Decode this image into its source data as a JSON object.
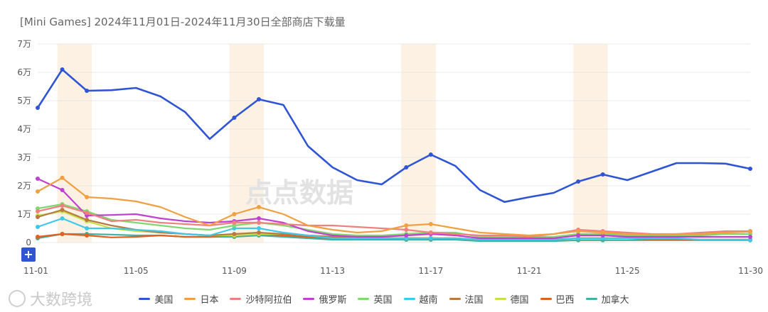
{
  "title": "[Mini Games] 2024年11月01日-2024年11月30日全部商店下载量",
  "watermark": "点点数据",
  "footer_logo": "大数跨境",
  "zoom_button": "+",
  "chart_data": {
    "type": "line",
    "title": "[Mini Games] 2024年11月01日-2024年11月30日全部商店下载量",
    "x": [
      "11-01",
      "11-02",
      "11-03",
      "11-04",
      "11-05",
      "11-06",
      "11-07",
      "11-08",
      "11-09",
      "11-10",
      "11-11",
      "11-12",
      "11-13",
      "11-14",
      "11-15",
      "11-16",
      "11-17",
      "11-18",
      "11-19",
      "11-20",
      "11-21",
      "11-22",
      "11-23",
      "11-24",
      "11-25",
      "11-26",
      "11-27",
      "11-28",
      "11-29",
      "11-30"
    ],
    "x_tick_labels": [
      "11-01",
      "11-05",
      "11-09",
      "11-13",
      "11-17",
      "11-21",
      "11-25",
      "11-30"
    ],
    "y_tick_labels": [
      "0",
      "1万",
      "2万",
      "3万",
      "4万",
      "5万",
      "6万",
      "7万"
    ],
    "ylim": [
      0,
      70000
    ],
    "weekend_bands": [
      [
        "11-02",
        "11-03"
      ],
      [
        "11-09",
        "11-10"
      ],
      [
        "11-16",
        "11-17"
      ],
      [
        "11-23",
        "11-24"
      ]
    ],
    "grid": true,
    "legend_position": "bottom",
    "series": [
      {
        "name": "美国",
        "color": "#2f55d4",
        "values": [
          47500,
          61000,
          53500,
          53700,
          54500,
          51500,
          46000,
          36500,
          44000,
          50500,
          48500,
          34000,
          26500,
          22000,
          20500,
          26500,
          31000,
          27000,
          18500,
          14300,
          16000,
          17500,
          21500,
          24000,
          22000,
          25000,
          28000,
          28000,
          27800,
          26000
        ]
      },
      {
        "name": "日本",
        "color": "#f0a040",
        "values": [
          18000,
          22800,
          16000,
          15500,
          14500,
          12500,
          9000,
          6000,
          10000,
          12500,
          10000,
          6000,
          4500,
          3500,
          4000,
          6000,
          6500,
          5000,
          3500,
          3000,
          2500,
          3000,
          4000,
          3500,
          3000,
          2800,
          3000,
          3000,
          3500,
          3800
        ]
      },
      {
        "name": "沙特阿拉伯",
        "color": "#f08080",
        "values": [
          11000,
          13000,
          10500,
          7500,
          8000,
          7000,
          6500,
          6000,
          7000,
          7000,
          6500,
          6000,
          6000,
          5500,
          5000,
          4500,
          3500,
          3000,
          2500,
          2500,
          2000,
          3000,
          4500,
          4000,
          3500,
          3000,
          3000,
          3500,
          4000,
          4000
        ]
      },
      {
        "name": "俄罗斯",
        "color": "#c040d0",
        "values": [
          22500,
          18500,
          9500,
          9700,
          10000,
          8500,
          7500,
          7000,
          7500,
          8500,
          7000,
          4000,
          2500,
          2000,
          2000,
          2500,
          3000,
          2500,
          1500,
          1500,
          1500,
          1500,
          2500,
          2500,
          2000,
          2000,
          2000,
          2000,
          2000,
          2000
        ]
      },
      {
        "name": "英国",
        "color": "#80d870",
        "values": [
          12000,
          13500,
          11000,
          8000,
          7000,
          6000,
          5000,
          4500,
          6000,
          7000,
          6000,
          4500,
          3000,
          2500,
          2500,
          3000,
          3500,
          3500,
          2000,
          2000,
          2000,
          2000,
          3000,
          3000,
          2500,
          2500,
          2500,
          2500,
          3000,
          3000
        ]
      },
      {
        "name": "越南",
        "color": "#40c8e8",
        "values": [
          5500,
          8500,
          5000,
          5000,
          4500,
          4000,
          3000,
          2500,
          5000,
          5000,
          3500,
          2500,
          1500,
          1500,
          1500,
          1500,
          1500,
          1500,
          1000,
          1000,
          1000,
          1000,
          1500,
          1500,
          1500,
          1500,
          1500,
          1000,
          1000,
          1000
        ]
      },
      {
        "name": "法国",
        "color": "#b87a40",
        "values": [
          9000,
          11500,
          8000,
          6000,
          4500,
          3500,
          3000,
          2500,
          3000,
          3500,
          3000,
          2500,
          2000,
          1500,
          1500,
          1500,
          1500,
          1500,
          1000,
          1000,
          1000,
          1000,
          1500,
          1500,
          1500,
          1000,
          1000,
          1000,
          1000,
          1000
        ]
      },
      {
        "name": "德国",
        "color": "#c8e048",
        "values": [
          9500,
          11000,
          7500,
          5000,
          4000,
          3500,
          3000,
          2500,
          2500,
          3000,
          3000,
          2500,
          2000,
          1500,
          1500,
          1500,
          1500,
          1500,
          1000,
          1000,
          1000,
          1000,
          1500,
          1500,
          1500,
          1000,
          1000,
          1000,
          1000,
          1000
        ]
      },
      {
        "name": "巴西",
        "color": "#e06020",
        "values": [
          2000,
          3000,
          2500,
          1800,
          2000,
          2500,
          2000,
          2000,
          2500,
          3000,
          2500,
          2000,
          1500,
          1500,
          1500,
          1500,
          1500,
          1500,
          1000,
          1000,
          1000,
          1000,
          1500,
          1500,
          1500,
          1000,
          1000,
          1000,
          1000,
          1000
        ]
      },
      {
        "name": "加拿大",
        "color": "#40b0a0",
        "values": [
          1500,
          3000,
          3000,
          2800,
          2500,
          2500,
          2000,
          2000,
          2000,
          2500,
          2000,
          1500,
          1000,
          1000,
          1000,
          1000,
          1000,
          1000,
          500,
          500,
          500,
          500,
          800,
          800,
          800,
          800,
          800,
          800,
          800,
          800
        ]
      }
    ]
  }
}
